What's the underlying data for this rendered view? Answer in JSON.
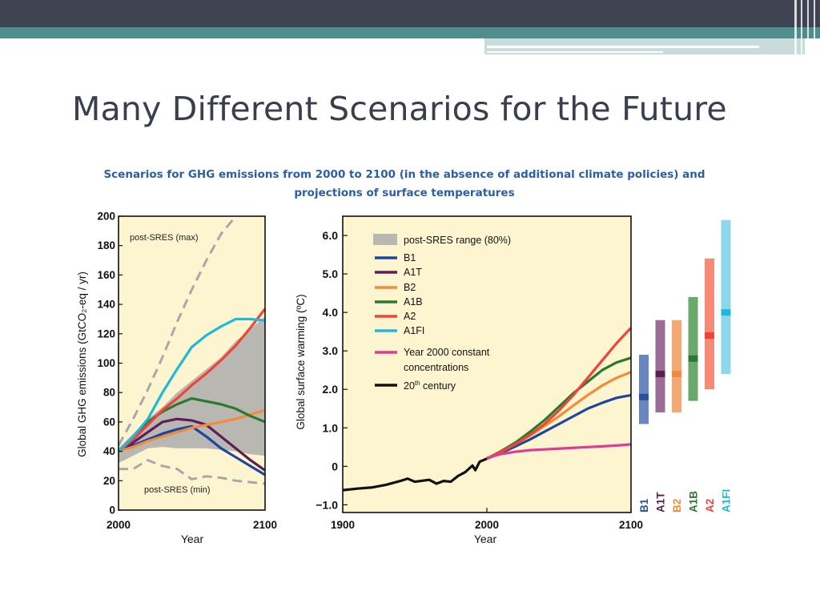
{
  "slide": {
    "title": "Many Different Scenarios for the Future",
    "colors": {
      "bar_dark": "#3f4352",
      "bar_teal": "#4e8e8c",
      "title": "#3a3f4e"
    }
  },
  "chart_data": [
    {
      "type": "line",
      "title_line1": "Scenarios for GHG emissions from 2000 to 2100 (in the absence of additional climate policies) and",
      "title_line2": "projections of surface temperatures",
      "xlabel": "Year",
      "ylabel": "Global GHG emissions (GtCO₂-eq / yr)",
      "xlim": [
        2000,
        2100
      ],
      "ylim": [
        0,
        200
      ],
      "xticks": [
        "2000",
        "2100"
      ],
      "yticks": [
        "0",
        "20",
        "40",
        "60",
        "80",
        "100",
        "120",
        "140",
        "160",
        "180",
        "200"
      ],
      "background": "#fdf5d0",
      "annotations": [
        {
          "text": "post-SRES (max)"
        },
        {
          "text": "post-SRES (min)"
        }
      ],
      "range_band": {
        "color": "#b9b7b2",
        "x": [
          2000,
          2010,
          2020,
          2030,
          2040,
          2050,
          2060,
          2070,
          2080,
          2090,
          2100
        ],
        "upper": [
          42,
          52,
          62,
          70,
          80,
          88,
          96,
          104,
          115,
          123,
          132
        ],
        "lower": [
          32,
          37,
          42,
          43,
          42,
          42,
          42,
          41,
          40,
          38,
          37
        ]
      },
      "series": [
        {
          "name": "post-SRES max",
          "color": "#a8a8a8",
          "dashed": true,
          "x": [
            2000,
            2010,
            2020,
            2030,
            2040,
            2050,
            2060,
            2070,
            2080
          ],
          "y": [
            44,
            62,
            82,
            104,
            128,
            150,
            170,
            188,
            200
          ]
        },
        {
          "name": "post-SRES min",
          "color": "#a8a8a8",
          "dashed": true,
          "x": [
            2000,
            2010,
            2020,
            2030,
            2040,
            2050,
            2060,
            2070,
            2080,
            2090,
            2100
          ],
          "y": [
            28,
            28,
            34,
            30,
            28,
            21,
            23,
            22,
            20,
            19,
            18
          ]
        },
        {
          "name": "B1",
          "color": "#1c47a0",
          "x": [
            2000,
            2010,
            2020,
            2030,
            2040,
            2050,
            2060,
            2070,
            2080,
            2090,
            2100
          ],
          "y": [
            40,
            44,
            48,
            52,
            55,
            57,
            50,
            42,
            36,
            30,
            24
          ]
        },
        {
          "name": "A1T",
          "color": "#5b1f55",
          "x": [
            2000,
            2010,
            2020,
            2030,
            2040,
            2050,
            2060,
            2070,
            2080,
            2090,
            2100
          ],
          "y": [
            40,
            46,
            53,
            60,
            62,
            61,
            58,
            50,
            42,
            34,
            27
          ]
        },
        {
          "name": "B2",
          "color": "#f58a38",
          "x": [
            2000,
            2010,
            2020,
            2030,
            2040,
            2050,
            2060,
            2070,
            2080,
            2090,
            2100
          ],
          "y": [
            40,
            43,
            47,
            50,
            53,
            56,
            58,
            60,
            62,
            65,
            68
          ]
        },
        {
          "name": "A1B",
          "color": "#2a7a2e",
          "x": [
            2000,
            2010,
            2020,
            2030,
            2040,
            2050,
            2060,
            2070,
            2080,
            2090,
            2100
          ],
          "y": [
            40,
            50,
            60,
            67,
            72,
            76,
            74,
            72,
            69,
            64,
            60
          ]
        },
        {
          "name": "A2",
          "color": "#f04438",
          "x": [
            2000,
            2010,
            2020,
            2030,
            2040,
            2050,
            2060,
            2070,
            2080,
            2090,
            2100
          ],
          "y": [
            40,
            48,
            58,
            68,
            76,
            85,
            93,
            102,
            112,
            124,
            137
          ]
        },
        {
          "name": "A1FI",
          "color": "#1fb8d8",
          "x": [
            2000,
            2010,
            2020,
            2030,
            2040,
            2050,
            2060,
            2070,
            2080,
            2090,
            2100
          ],
          "y": [
            40,
            50,
            62,
            80,
            96,
            111,
            119,
            125,
            130,
            130,
            129
          ]
        }
      ]
    },
    {
      "type": "line",
      "xlabel": "Year",
      "ylabel": "Global surface warming (ºC)",
      "xlim": [
        1900,
        2100
      ],
      "ylim": [
        -1.2,
        6.5
      ],
      "xticks": [
        "1900",
        "2000",
        "2100"
      ],
      "yticks": [
        "−1.0",
        "0",
        "1.0",
        "2.0",
        "3.0",
        "4.0",
        "5.0",
        "6.0"
      ],
      "background": "#fdf5d0",
      "legend": {
        "position": "top-left",
        "entries": [
          {
            "label": "post-SRES range (80%)",
            "color": "#b9b7b2",
            "swatch": "box"
          },
          {
            "label": "B1",
            "color": "#1c47a0"
          },
          {
            "label": "A1T",
            "color": "#5b1f55"
          },
          {
            "label": "B2",
            "color": "#f58a38"
          },
          {
            "label": "A1B",
            "color": "#2a7a2e"
          },
          {
            "label": "A2",
            "color": "#f04438"
          },
          {
            "label": "A1FI",
            "color": "#1fb8d8"
          },
          {
            "label_line1": "Year 2000 constant",
            "label_line2": "concentrations",
            "color": "#e0399a"
          },
          {
            "label": "20",
            "sup": "th",
            "label_rest": " century",
            "color": "#111111"
          }
        ]
      },
      "series": [
        {
          "name": "20th century",
          "color": "#111111",
          "x": [
            1900,
            1910,
            1920,
            1930,
            1940,
            1945,
            1950,
            1960,
            1965,
            1970,
            1975,
            1980,
            1985,
            1990,
            1992,
            1995,
            2000
          ],
          "y": [
            -0.62,
            -0.58,
            -0.55,
            -0.48,
            -0.38,
            -0.32,
            -0.4,
            -0.35,
            -0.45,
            -0.38,
            -0.4,
            -0.25,
            -0.15,
            0.02,
            -0.1,
            0.12,
            0.2
          ]
        },
        {
          "name": "B1",
          "color": "#1c47a0",
          "x": [
            2000,
            2010,
            2020,
            2030,
            2040,
            2050,
            2060,
            2070,
            2080,
            2090,
            2100
          ],
          "y": [
            0.2,
            0.35,
            0.52,
            0.7,
            0.9,
            1.1,
            1.3,
            1.5,
            1.65,
            1.78,
            1.85
          ]
        },
        {
          "name": "B2",
          "color": "#f58a38",
          "x": [
            2000,
            2010,
            2020,
            2030,
            2040,
            2050,
            2060,
            2070,
            2080,
            2090,
            2100
          ],
          "y": [
            0.2,
            0.38,
            0.58,
            0.8,
            1.05,
            1.3,
            1.58,
            1.85,
            2.1,
            2.3,
            2.45
          ]
        },
        {
          "name": "A1B",
          "color": "#2a7a2e",
          "x": [
            2000,
            2010,
            2020,
            2030,
            2040,
            2050,
            2060,
            2070,
            2080,
            2090,
            2100
          ],
          "y": [
            0.2,
            0.4,
            0.62,
            0.9,
            1.2,
            1.55,
            1.9,
            2.2,
            2.5,
            2.7,
            2.82
          ]
        },
        {
          "name": "A2",
          "color": "#f04438",
          "x": [
            2000,
            2010,
            2020,
            2030,
            2040,
            2050,
            2060,
            2070,
            2080,
            2090,
            2100
          ],
          "y": [
            0.2,
            0.38,
            0.58,
            0.82,
            1.1,
            1.45,
            1.85,
            2.3,
            2.75,
            3.2,
            3.6
          ]
        },
        {
          "name": "Year 2000 constant concentrations",
          "color": "#e0399a",
          "x": [
            2000,
            2010,
            2020,
            2030,
            2040,
            2050,
            2060,
            2070,
            2080,
            2090,
            2100
          ],
          "y": [
            0.22,
            0.32,
            0.38,
            0.42,
            0.44,
            0.46,
            0.48,
            0.5,
            0.52,
            0.54,
            0.57
          ]
        }
      ],
      "scenario_bars": [
        {
          "label": "B1",
          "color": "#2a4f9c",
          "light": "#6a86c0",
          "low": 1.1,
          "best": 1.8,
          "high": 2.9
        },
        {
          "label": "A1T",
          "color": "#5b1f55",
          "light": "#9a6c96",
          "low": 1.4,
          "best": 2.4,
          "high": 3.8
        },
        {
          "label": "B2",
          "color": "#f58a38",
          "light": "#f6a872",
          "low": 1.4,
          "best": 2.4,
          "high": 3.8
        },
        {
          "label": "A1B",
          "color": "#2a7a2e",
          "light": "#6aa86c",
          "low": 1.7,
          "best": 2.8,
          "high": 4.4
        },
        {
          "label": "A2",
          "color": "#f04438",
          "light": "#f58a78",
          "low": 2.0,
          "best": 3.4,
          "high": 5.4
        },
        {
          "label": "A1FI",
          "color": "#1fb8d8",
          "light": "#8ed6ea",
          "low": 2.4,
          "best": 4.0,
          "high": 6.4
        }
      ]
    }
  ]
}
